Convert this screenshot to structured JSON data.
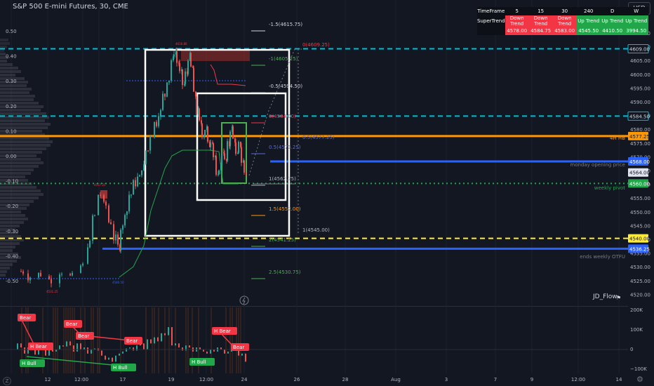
{
  "title": "S&P 500 E-mini Futures, 30, CME",
  "currency_button": "USD",
  "timeframe_table": {
    "header_label": "TimeFrame",
    "row_label": "SuperTrend",
    "columns": [
      "5",
      "15",
      "30",
      "240",
      "D",
      "W"
    ],
    "trends": [
      "Down Trend",
      "Down Trend",
      "Down Trend",
      "Up Trend",
      "Up Trend",
      "Up Trend"
    ],
    "values": [
      "4578.00",
      "4584.75",
      "4583.00",
      "4545.50",
      "4410.50",
      "3994.50"
    ],
    "trend_colors": {
      "down": "#f23645",
      "up": "#22a64a"
    }
  },
  "left_axis": [
    "0.50",
    "0.40",
    "0.30",
    "0.20",
    "0.10",
    "0.00",
    "-0.10",
    "-0.20",
    "-0.30",
    "-0.40",
    "-0.50"
  ],
  "right_axis": [
    "4615.00",
    "4610.00",
    "4605.00",
    "4600.00",
    "4595.00",
    "4590.00",
    "4585.00",
    "4580.00",
    "4575.00",
    "4570.00",
    "4565.00",
    "4560.00",
    "4555.00",
    "4550.00",
    "4545.00",
    "4540.00",
    "4535.00",
    "4530.00",
    "4525.00",
    "4520.00"
  ],
  "price_tags": [
    {
      "text": "4609.00",
      "style": "dark",
      "color": "#00bcd4"
    },
    {
      "text": "4584.50",
      "style": "dark",
      "color": "#00bcd4"
    },
    {
      "text": "4577.25",
      "style": "fill",
      "color": "#ff9800"
    },
    {
      "text": "4568.00",
      "style": "fill",
      "color": "#2962ff"
    },
    {
      "text": "4564.00",
      "style": "light",
      "color": "#e0e3eb"
    },
    {
      "text": "4560.00",
      "style": "fill",
      "color": "#22a64a"
    },
    {
      "text": "4540.00",
      "style": "fill",
      "color": "#ffeb3b"
    },
    {
      "text": "4536.25",
      "style": "fill",
      "color": "#2962ff"
    }
  ],
  "line_labels": {
    "fourh_hb": "4H HB",
    "monday_open": "monday opening price",
    "weekly_pivot": "weekly pivot",
    "ends_weekly": "ends weekly OTFU"
  },
  "fib_labels": [
    {
      "text": "-1.5(4615.75)",
      "color": "#d1d4dc"
    },
    {
      "text": "-1(4605.25)",
      "color": "#4caf50"
    },
    {
      "text": "-0.5(4594.50)",
      "color": "#d1d4dc"
    },
    {
      "text": "0(4584.00)",
      "color": "#f23645"
    },
    {
      "text": "0.5(4573.25)",
      "color": "#5b6bd6"
    },
    {
      "text": "1(4562.75)",
      "color": "#b2b5be"
    },
    {
      "text": "1.5(4552.00)",
      "color": "#ff9800"
    },
    {
      "text": "2(4541.25)",
      "color": "#4caf50"
    },
    {
      "text": "2.5(4530.75)",
      "color": "#4caf50"
    }
  ],
  "fib2_labels": [
    {
      "text": "0(4609.25)",
      "color": "#f23645"
    },
    {
      "text": "0.5(4577.25)",
      "color": "#5b6bd6"
    },
    {
      "text": "1(4545.00)",
      "color": "#b2b5be"
    }
  ],
  "indicator_name": "JD_Flow",
  "osc_axis": [
    "200K",
    "100K",
    "0",
    "−100K"
  ],
  "osc_labels": [
    {
      "text": "Bear",
      "kind": "bear"
    },
    {
      "text": "H Bear",
      "kind": "bear"
    },
    {
      "text": "Bear",
      "kind": "bear"
    },
    {
      "text": "Bear",
      "kind": "bear"
    },
    {
      "text": "Bear",
      "kind": "bear"
    },
    {
      "text": "H Bear",
      "kind": "bear"
    },
    {
      "text": "Bear",
      "kind": "bear"
    },
    {
      "text": "H Bull",
      "kind": "bull"
    },
    {
      "text": "H Bull",
      "kind": "bull"
    },
    {
      "text": "H Bull",
      "kind": "bull"
    }
  ],
  "time_axis": [
    "12",
    "12:00",
    "17",
    "19",
    "12:00",
    "24",
    "26",
    "28",
    "Aug",
    "3",
    "7",
    "9",
    "12:00",
    "14"
  ],
  "small_marks": [
    "4580.50",
    "4616.80",
    "4557.25",
    "4531.25"
  ],
  "bottom_left_button": "Z",
  "settings_icon": "gear-icon"
}
